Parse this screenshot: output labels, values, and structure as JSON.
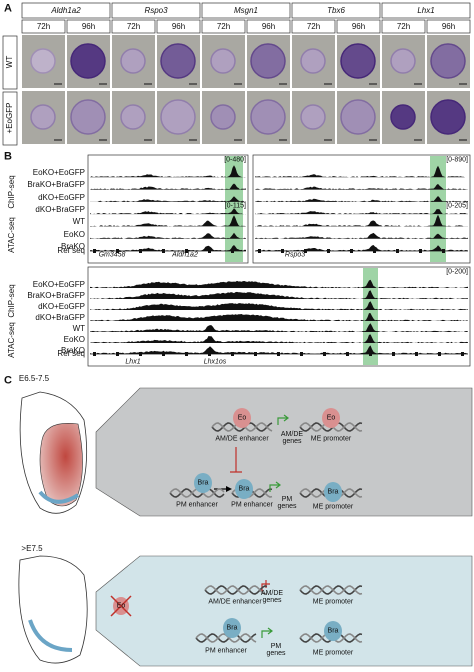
{
  "panel_a": {
    "label": "A",
    "genes": [
      "Aldh1a2",
      "Rspo3",
      "Msgn1",
      "Tbx6",
      "Lhx1"
    ],
    "times": [
      "72h",
      "96h"
    ],
    "rows": [
      "WT",
      "+EoGFP"
    ]
  },
  "panel_b": {
    "label": "B",
    "assays": [
      "ChIP-seq",
      "ATAC-seq"
    ],
    "tracks": [
      "EoKO+EoGFP",
      "BraKO+BraGFP",
      "dKO+EoGFP",
      "dKO+BraGFP",
      "WT",
      "EoKO",
      "BraKO"
    ],
    "ref_label": "Ref seq",
    "top_left": {
      "ranges": [
        "[0-480]",
        "[0-115]"
      ],
      "genes": [
        "Gm3458",
        "Aldh1a2"
      ]
    },
    "top_right": {
      "ranges": [
        "[0-890]",
        "[0-205]"
      ],
      "genes": [
        "Rspo3"
      ]
    },
    "bottom": {
      "ranges": [
        "[0-200]"
      ],
      "genes": [
        "Lhx1",
        "Lhx1os"
      ]
    }
  },
  "panel_c": {
    "label": "C",
    "top": {
      "stage": "E6.5-7.5",
      "factors": [
        "Eo",
        "Eo",
        "Bra",
        "Bra",
        "Bra"
      ],
      "elements": [
        "AM/DE enhancer",
        "ME promoter",
        "PM enhancer",
        "PM enhancer",
        "ME promoter"
      ],
      "genes": [
        "AM/DE genes",
        "PM genes"
      ]
    },
    "bottom": {
      "stage": ">E7.5",
      "factors": [
        "Eo",
        "Bra",
        "Bra"
      ],
      "elements": [
        "AM/DE enhancer",
        "ME promoter",
        "PM enhancer",
        "ME promoter"
      ],
      "genes": [
        "AM/DE genes",
        "PM genes"
      ]
    }
  }
}
